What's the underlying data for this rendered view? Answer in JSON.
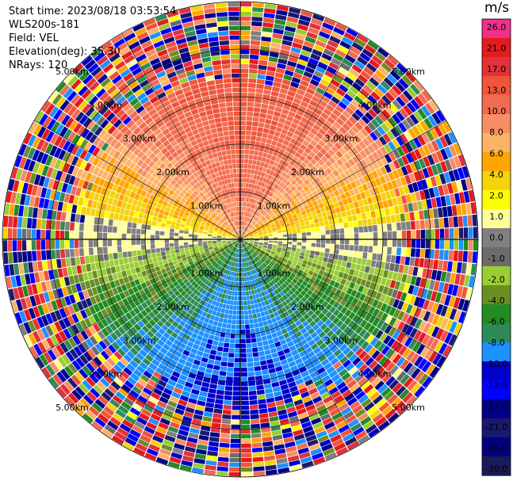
{
  "header": {
    "start_time": "Start time: 2023/08/18 03:53:54",
    "instrument": "WLS200s-181",
    "field": "Field: VEL",
    "elevation": "Elevation(deg): 35.30",
    "nrays": "NRays: 120"
  },
  "colorbar": {
    "unit": "m/s",
    "ticks": [
      "26.0",
      "21.0",
      "17.0",
      "13.0",
      "10.0",
      "8.0",
      "6.0",
      "4.0",
      "2.0",
      "1.0",
      "0.0",
      "-1.0",
      "-2.0",
      "-4.0",
      "-6.0",
      "-8.0",
      "-10.0",
      "-13.0",
      "-17.0",
      "-21.0",
      "-26.0",
      "-30.0"
    ],
    "colors": [
      "#f0308a",
      "#e41a1c",
      "#e3313a",
      "#ef553b",
      "#f36b4f",
      "#f88f63",
      "#fdb366",
      "#ffa500",
      "#f5d20a",
      "#ffff00",
      "#ffff99",
      "#808080",
      "#6b6b6b",
      "#9acd32",
      "#6b8e23",
      "#228b22",
      "#2e8b57",
      "#1e90ff",
      "#0000cd",
      "#0000ff",
      "#00008b",
      "#191970",
      "#000080",
      "#1a1a5a"
    ]
  },
  "chart_data": {
    "type": "heatmap",
    "projection": "polar PPI",
    "field": "VEL",
    "units": "m/s",
    "nrays": 120,
    "range_rings_km": [
      1.0,
      2.0,
      3.0,
      4.0,
      5.0
    ],
    "ring_labels": [
      "1.00km",
      "2.00km",
      "3.00km",
      "4.00km",
      "5.00km"
    ],
    "max_range_km": 5.0,
    "color_range": [
      -30.0,
      26.0
    ],
    "pattern": "positive velocities (red/orange/yellow) to the north, negative (green/blue) to the south, near-zero (gray) along east-west axis, noisy random values beyond ~3.3 km"
  }
}
